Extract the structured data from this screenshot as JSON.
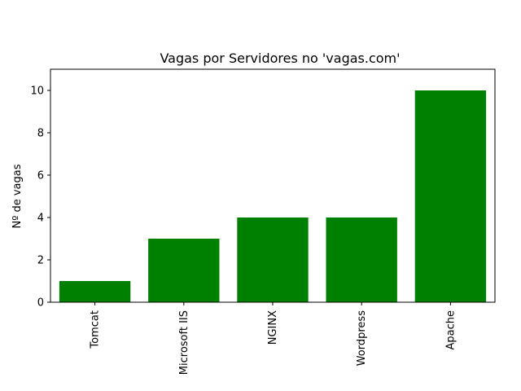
{
  "chart_data": {
    "type": "bar",
    "title": "Vagas por Servidores no 'vagas.com'",
    "xlabel": "",
    "ylabel": "Nº de vagas",
    "categories": [
      "Tomcat",
      "Microsoft IIS",
      "NGINX",
      "Wordpress",
      "Apache"
    ],
    "values": [
      1,
      3,
      4,
      4,
      10
    ],
    "ylim": [
      0,
      11
    ],
    "yticks": [
      0,
      2,
      4,
      6,
      8,
      10
    ],
    "bar_color": "#008000",
    "grid": false,
    "legend": "none"
  }
}
